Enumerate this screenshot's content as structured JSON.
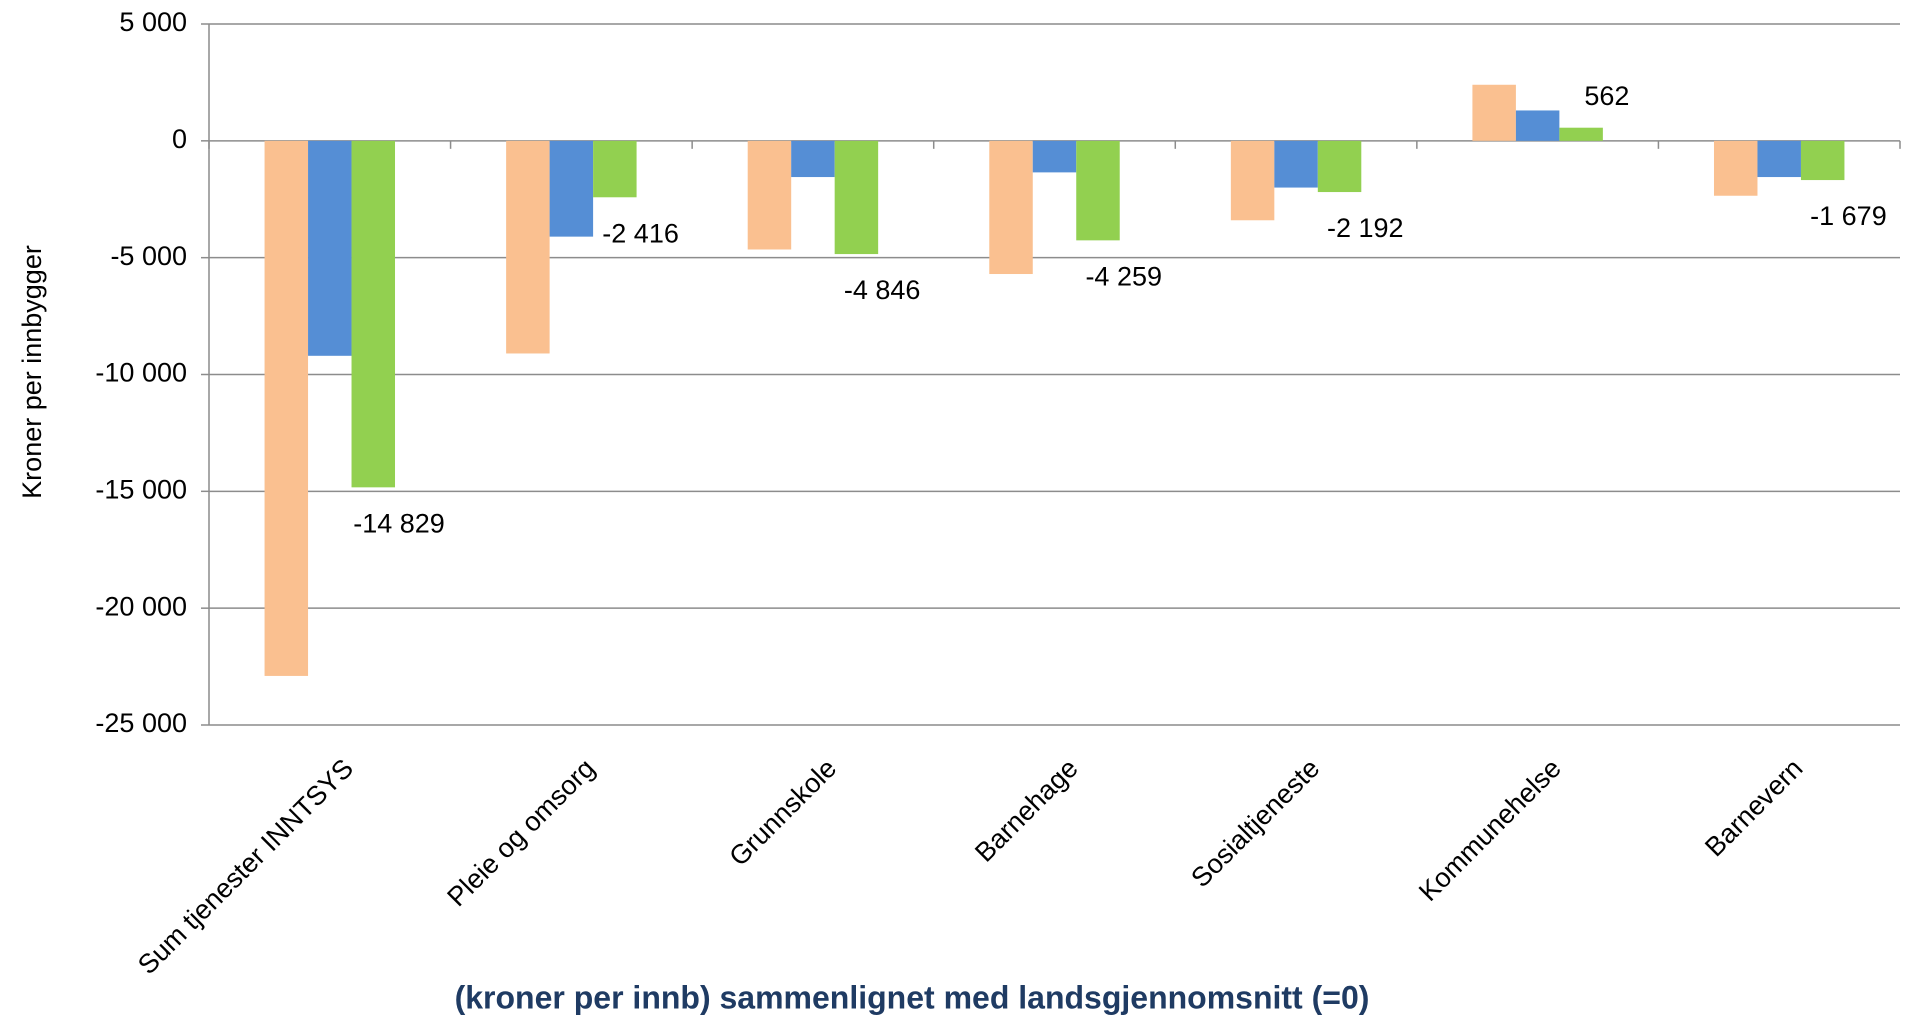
{
  "chart_data": {
    "type": "bar",
    "x_label": "(kroner per innb) sammenlignet med landsgjennomsnitt (=0)",
    "y_label": "Kroner per innbygger",
    "categories": [
      "Sum tjenester INNTSYS",
      "Pleie og omsorg",
      "Grunnskole",
      "Barnehage",
      "Sosialtjeneste",
      "Kommunehelse",
      "Barnevern"
    ],
    "series": [
      {
        "color": "#fac090",
        "values": [
          -22900,
          -9100,
          -4650,
          -5700,
          -3400,
          2400,
          -2350
        ]
      },
      {
        "color": "#558ed5",
        "values": [
          -9200,
          -4100,
          -1550,
          -1350,
          -2000,
          1300,
          -1550
        ]
      },
      {
        "color": "#92d050",
        "values": [
          -14829,
          -2416,
          -4846,
          -4259,
          -2192,
          562,
          -1679
        ],
        "value_labels": [
          "-14 829",
          "-2 416",
          "-4 846",
          "-4 259",
          "-2 192",
          "562",
          "-1 679"
        ]
      }
    ],
    "ylim": [
      -25000,
      5000
    ],
    "yticks": [
      {
        "value": 5000,
        "label": "5 000"
      },
      0,
      {
        "value": -5000,
        "label": "-5 000"
      },
      {
        "value": -10000,
        "label": "-10 000"
      },
      {
        "value": -15000,
        "label": "-15 000"
      },
      {
        "value": -20000,
        "label": "-20 000"
      },
      {
        "value": -25000,
        "label": "-25 000"
      }
    ],
    "grid": true
  }
}
